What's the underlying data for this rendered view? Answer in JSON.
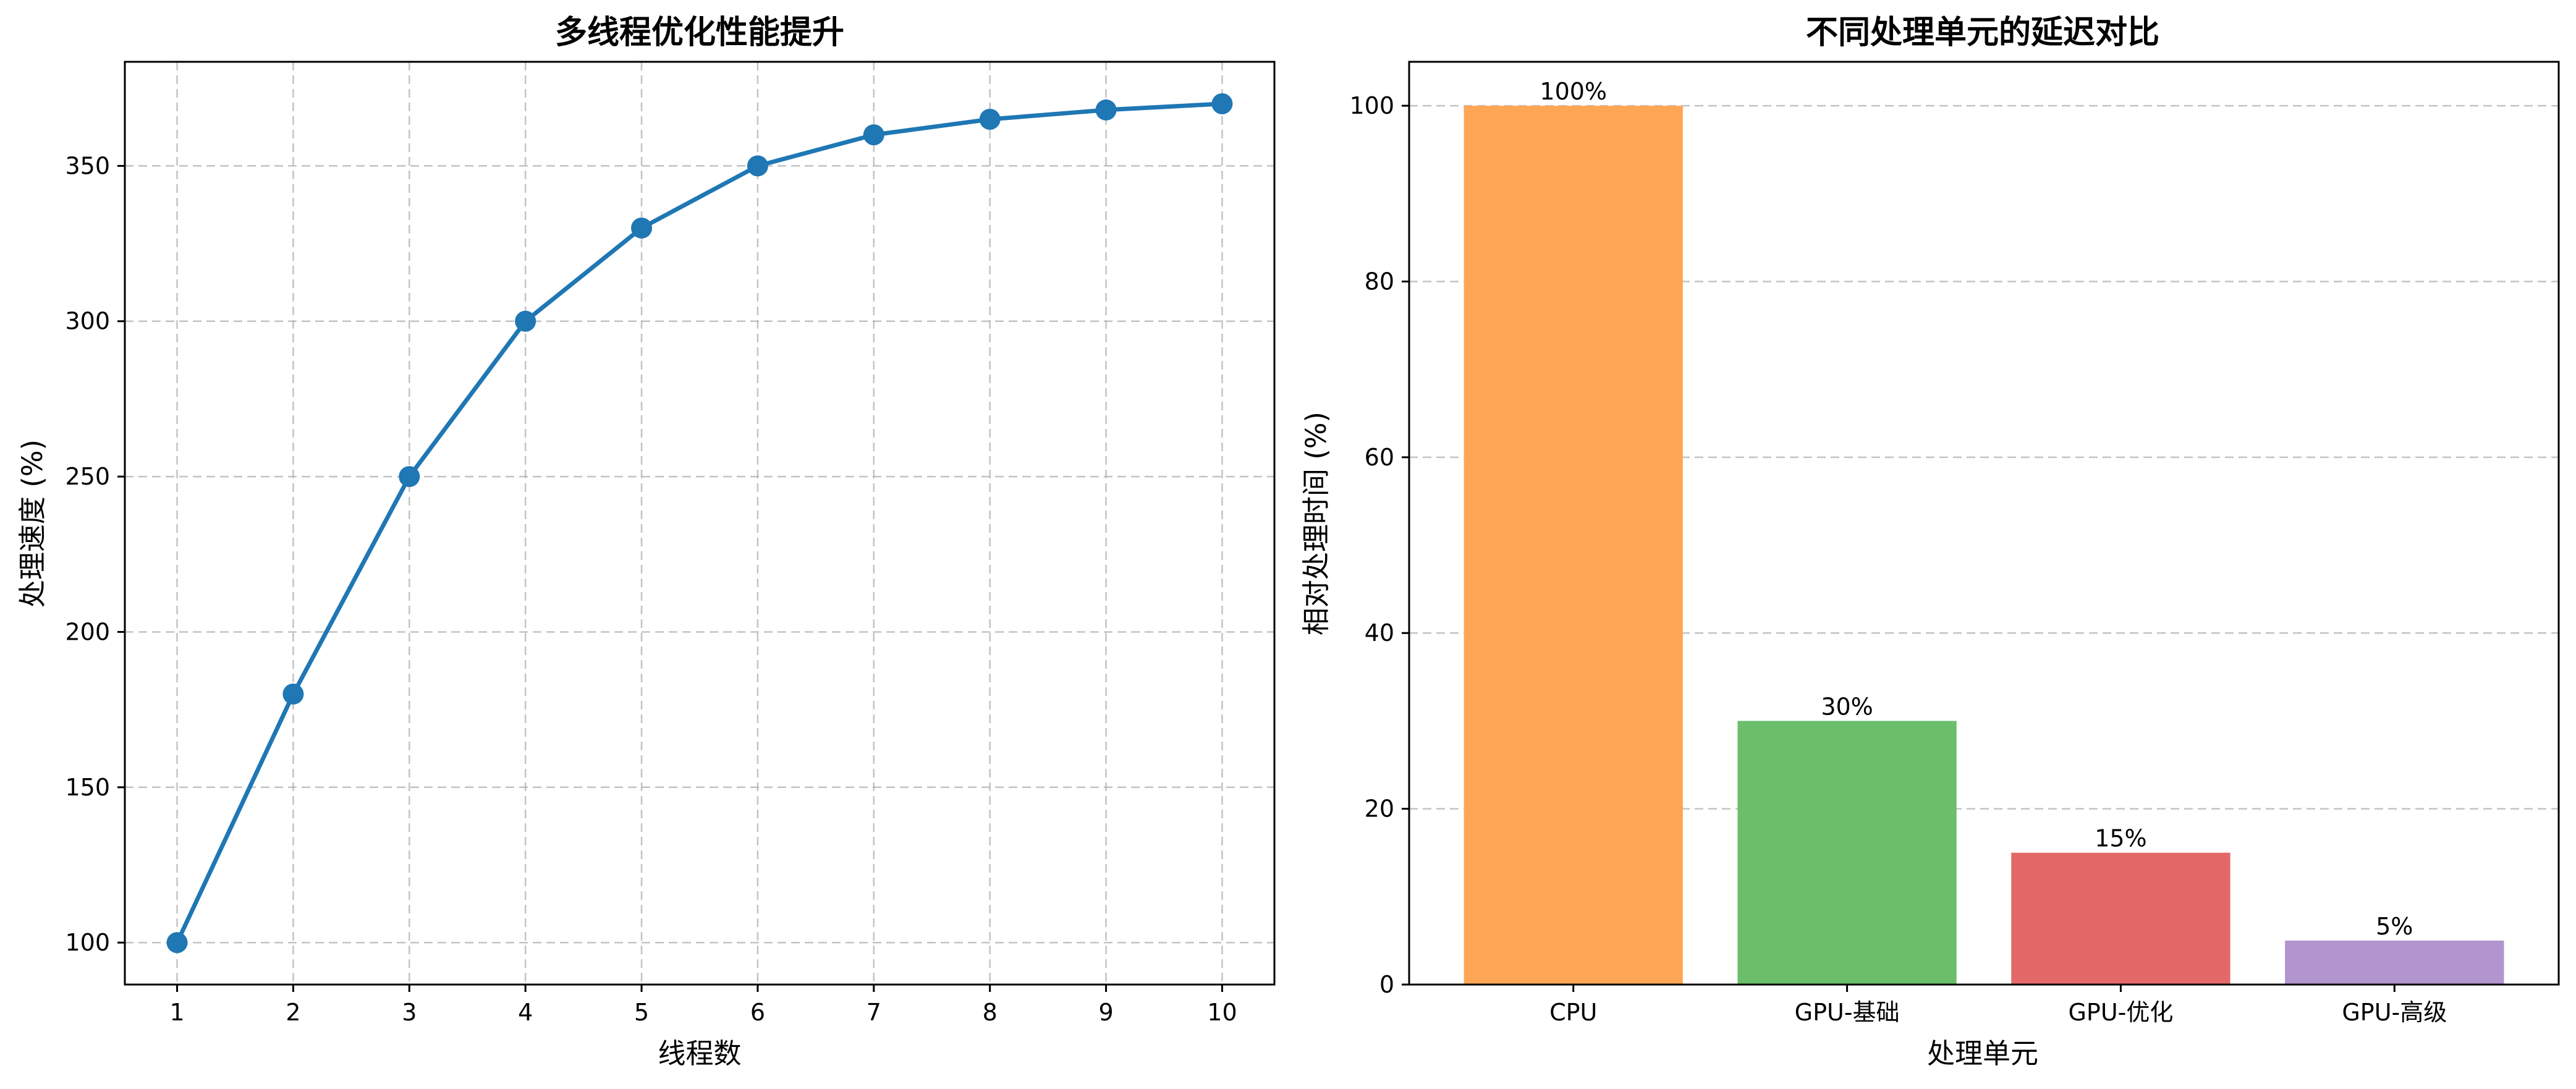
{
  "chart_data": [
    {
      "type": "line",
      "title": "多线程优化性能提升",
      "xlabel": "线程数",
      "ylabel": "处理速度 (%)",
      "x": [
        1,
        2,
        3,
        4,
        5,
        6,
        7,
        8,
        9,
        10
      ],
      "series": [
        {
          "values": [
            100,
            180,
            250,
            300,
            330,
            350,
            360,
            365,
            368,
            370
          ],
          "color": "#1f77b4"
        }
      ],
      "xticks": [
        "1",
        "2",
        "3",
        "4",
        "5",
        "6",
        "7",
        "8",
        "9",
        "10"
      ],
      "yticks": [
        100,
        150,
        200,
        250,
        300,
        350
      ],
      "ytick_labels": [
        "100",
        "150",
        "200",
        "250",
        "300",
        "350"
      ],
      "xlim": [
        0.55,
        10.45
      ],
      "ylim": [
        86.5,
        383.5
      ],
      "grid": true,
      "marker": "circle"
    },
    {
      "type": "bar",
      "title": "不同处理单元的延迟对比",
      "xlabel": "处理单元",
      "ylabel": "相对处理时间 (%)",
      "categories": [
        "CPU",
        "GPU-基础",
        "GPU-优化",
        "GPU-高级"
      ],
      "values": [
        100,
        30,
        15,
        5
      ],
      "data_labels": [
        "100%",
        "30%",
        "15%",
        "5%"
      ],
      "colors": [
        "#ffa556",
        "#6bbe6a",
        "#e36868",
        "#b294cf"
      ],
      "yticks": [
        0,
        20,
        40,
        60,
        80,
        100
      ],
      "ytick_labels": [
        "0",
        "20",
        "40",
        "60",
        "80",
        "100"
      ],
      "ylim": [
        0,
        105
      ],
      "grid": true,
      "grid_axis": "y"
    }
  ]
}
